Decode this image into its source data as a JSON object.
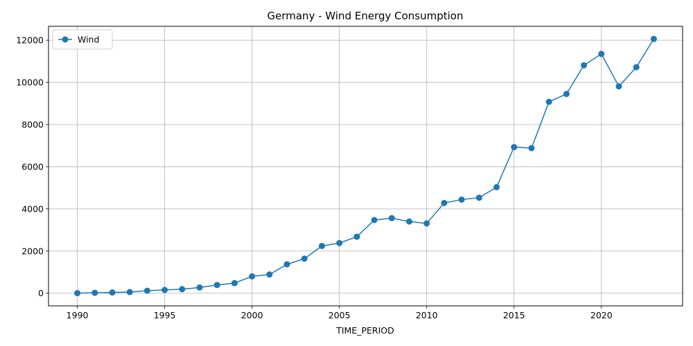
{
  "chart_data": {
    "type": "line",
    "title": "Germany - Wind Energy Consumption",
    "xlabel": "TIME_PERIOD",
    "ylabel": "",
    "x": [
      1990,
      1991,
      1992,
      1993,
      1994,
      1995,
      1996,
      1997,
      1998,
      1999,
      2000,
      2001,
      2002,
      2003,
      2004,
      2005,
      2006,
      2007,
      2008,
      2009,
      2010,
      2011,
      2012,
      2013,
      2014,
      2015,
      2016,
      2017,
      2018,
      2019,
      2020,
      2021,
      2022,
      2023
    ],
    "series": [
      {
        "name": "Wind",
        "color": "#1f77b4",
        "values": [
          5,
          20,
          35,
          55,
          120,
          155,
          190,
          270,
          390,
          480,
          800,
          890,
          1370,
          1640,
          2240,
          2380,
          2680,
          3470,
          3560,
          3400,
          3310,
          4280,
          4440,
          4530,
          5030,
          6930,
          6880,
          9080,
          9450,
          10810,
          11350,
          9810,
          10720,
          12060
        ]
      }
    ],
    "xlim": [
      1988.35,
      2024.65
    ],
    "ylim": [
      -600,
      12660
    ],
    "xticks": [
      1990,
      1995,
      2000,
      2005,
      2010,
      2015,
      2020
    ],
    "yticks": [
      0,
      2000,
      4000,
      6000,
      8000,
      10000,
      12000
    ],
    "grid": true,
    "legend_position": "top-left"
  }
}
